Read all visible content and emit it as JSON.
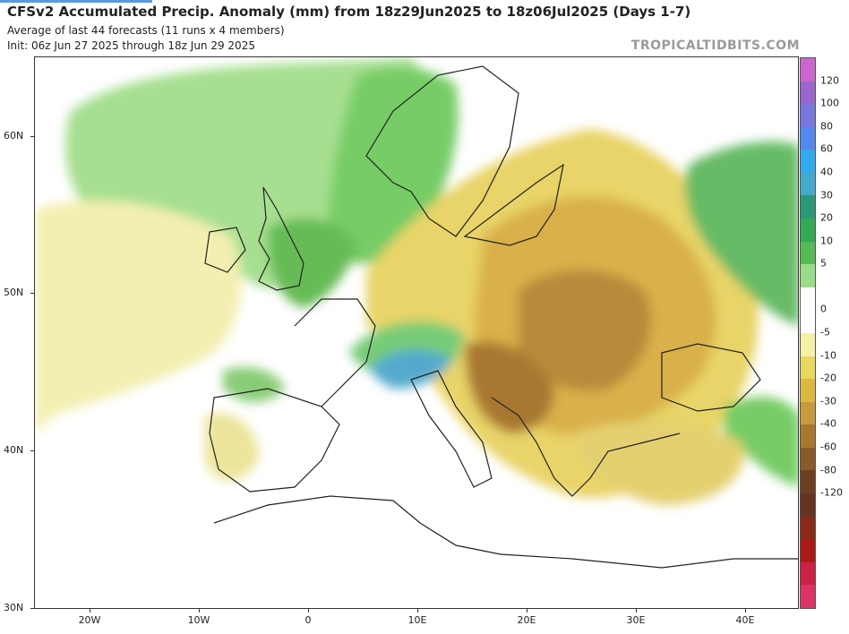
{
  "header": {
    "title": "CFSv2 Accumulated Precip. Anomaly (mm) from 18z29Jun2025 to 18z06Jul2025 (Days 1-7)",
    "subtitle_1": "Average of last 44 forecasts (11 runs x 4 members)",
    "subtitle_2": "Init: 06z Jun 27 2025 through 18z Jun 29 2025",
    "brand": "TROPICALTIDBITS.COM"
  },
  "axes": {
    "lat_labels": [
      "60N",
      "50N",
      "40N",
      "30N"
    ],
    "lon_labels": [
      "20W",
      "10W",
      "0",
      "10E",
      "20E",
      "30E",
      "40E"
    ]
  },
  "colorbar": {
    "labels": [
      "120",
      "100",
      "80",
      "60",
      "40",
      "30",
      "20",
      "10",
      "5",
      "0",
      "-5",
      "-10",
      "-20",
      "-30",
      "-40",
      "-60",
      "-80",
      "-120"
    ],
    "colors": [
      "#cc66cc",
      "#9966cc",
      "#7777dd",
      "#5588ee",
      "#33aaee",
      "#44aacc",
      "#2a9977",
      "#33aa55",
      "#55bb55",
      "#99dd88",
      "#ffffff",
      "#ffffff",
      "#f4f0a8",
      "#e8d860",
      "#dcb840",
      "#c89a3a",
      "#a87830",
      "#8a5a28",
      "#6a4020",
      "#663322",
      "#8a2a1a",
      "#aa1a1a",
      "#cc2244",
      "#dd3366"
    ]
  },
  "map_regions": {
    "positive": "green/blue (wetter than normal)",
    "negative": "yellow/brown (drier than normal)"
  }
}
